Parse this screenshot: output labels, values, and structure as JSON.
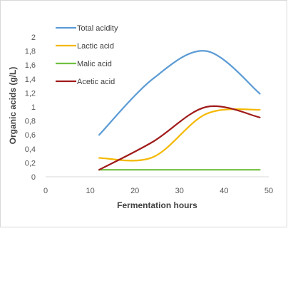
{
  "chart_data": {
    "type": "line",
    "xlabel": "Fermentation hours",
    "ylabel": "Organic acids (g/L)",
    "x_ticks": [
      "0",
      "10",
      "20",
      "30",
      "40",
      "50"
    ],
    "y_ticks": [
      "0",
      "0,2",
      "0,4",
      "0,6",
      "0,8",
      "1",
      "1,2",
      "1,4",
      "1,6",
      "1,8",
      "2"
    ],
    "xlim": [
      0,
      50
    ],
    "ylim": [
      0,
      2
    ],
    "grid": false,
    "legend_position": "top-left",
    "x": [
      12,
      24,
      36,
      48
    ],
    "series": [
      {
        "name": "Total acidity",
        "color": "#5b9bd5",
        "values": [
          0.6,
          1.4,
          1.8,
          1.19
        ]
      },
      {
        "name": "Lactic acid",
        "color": "#f5b800",
        "values": [
          0.27,
          0.28,
          0.9,
          0.96
        ]
      },
      {
        "name": "Malic acid",
        "color": "#70c040",
        "values": [
          0.1,
          0.1,
          0.1,
          0.1
        ]
      },
      {
        "name": "Acetic acid",
        "color": "#a01b1b",
        "values": [
          0.1,
          0.5,
          1.0,
          0.85
        ]
      }
    ]
  }
}
